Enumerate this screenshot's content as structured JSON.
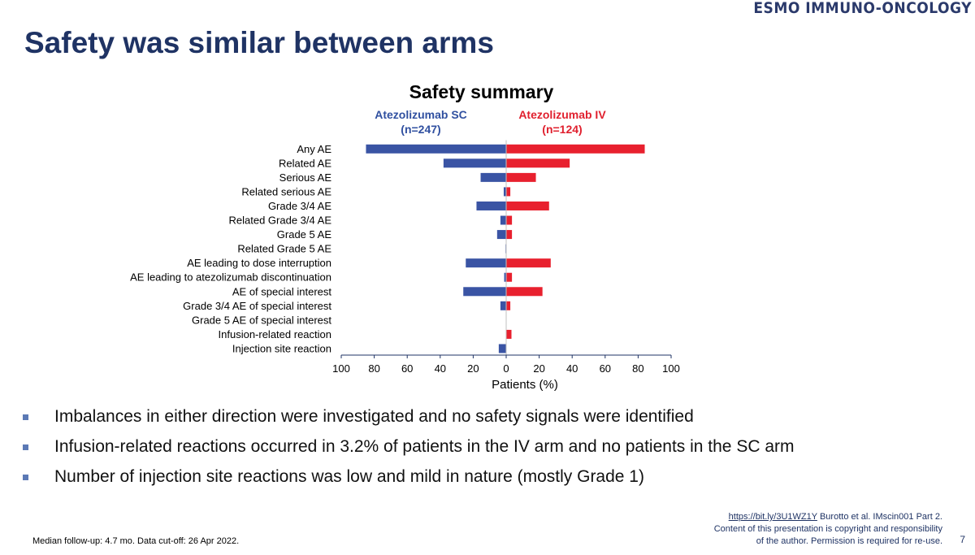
{
  "logo": "ESMO IMMUNO-ONCOLOGY",
  "slide_title": "Safety was similar between arms",
  "chart_data": {
    "type": "bar",
    "orientation": "horizontal-diverging",
    "title": "Safety summary",
    "xlabel": "Patients (%)",
    "xlim": [
      -100,
      100
    ],
    "xticks": [
      "100",
      "80",
      "60",
      "40",
      "20",
      "0",
      "20",
      "40",
      "60",
      "80",
      "100"
    ],
    "categories": [
      "Any AE",
      "Related AE",
      "Serious AE",
      "Related serious AE",
      "Grade 3/4 AE",
      "Related Grade 3/4 AE",
      "Grade 5 AE",
      "Related Grade 5 AE",
      "AE leading to dose interruption",
      "AE leading to atezolizumab discontinuation",
      "AE of special interest",
      "Grade 3/4 AE of special interest",
      "Grade 5 AE of special interest",
      "Infusion-related reaction",
      "Injection site reaction"
    ],
    "series": [
      {
        "name": "Atezolizumab SC",
        "n": "(n=247)",
        "color": "#3a54a4",
        "direction": "left",
        "values": [
          85,
          38,
          15.5,
          1.5,
          18,
          3.5,
          5.5,
          0.4,
          24.5,
          1.2,
          26,
          3.5,
          0,
          0,
          4.5
        ]
      },
      {
        "name": "Atezolizumab IV",
        "n": "(n=124)",
        "color": "#e8202e",
        "direction": "right",
        "values": [
          84,
          38.5,
          18,
          2.5,
          26,
          3.5,
          3.5,
          0,
          27,
          3.5,
          22,
          2.5,
          0,
          3.2,
          0
        ]
      }
    ]
  },
  "bullets": [
    "Imbalances in either direction were investigated and no safety signals were identified",
    "Infusion-related reactions occurred in 3.2% of patients in the IV arm and no patients in the SC arm",
    "Number of injection site reactions was low and mild in nature (mostly Grade 1)"
  ],
  "footnote": "Median follow-up: 4.7 mo. Data cut-off: 26 Apr 2022.",
  "reference": {
    "link": "https://bit.ly/3U1WZ1Y",
    "citation": "Burotto et al. IMscin001 Part 2.",
    "line2": "Content of this presentation is copyright and responsibility",
    "line3": "of the author. Permission is required for re-use."
  },
  "page_number": "7"
}
